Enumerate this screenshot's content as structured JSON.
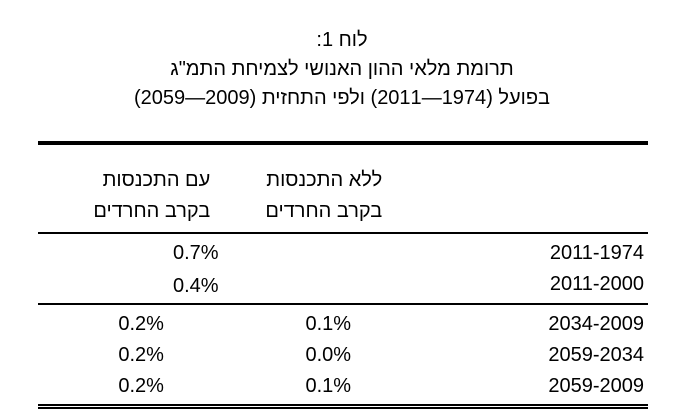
{
  "header": {
    "label": "לוח 1:",
    "title": "תרומת מלאי ההון האנושי לצמיחת התמ\"ג",
    "subtitle": "בפועל (1974—2011) ולפי התחזית (2009—2059)"
  },
  "table": {
    "columns": [
      [
        "ללא התכנסות",
        "בקרב החרדים"
      ],
      [
        "עם התכנסות",
        "בקרב החרדים"
      ]
    ],
    "rows": [
      [
        "2011-1974",
        "0.7%"
      ],
      [
        "2011-2000",
        "0.4%"
      ],
      [
        "2034-2009",
        "0.1%",
        "0.2%"
      ],
      [
        "2059-2034",
        "0.0%",
        "0.2%"
      ],
      [
        "2059-2009",
        "0.1%",
        "0.2%"
      ]
    ]
  }
}
